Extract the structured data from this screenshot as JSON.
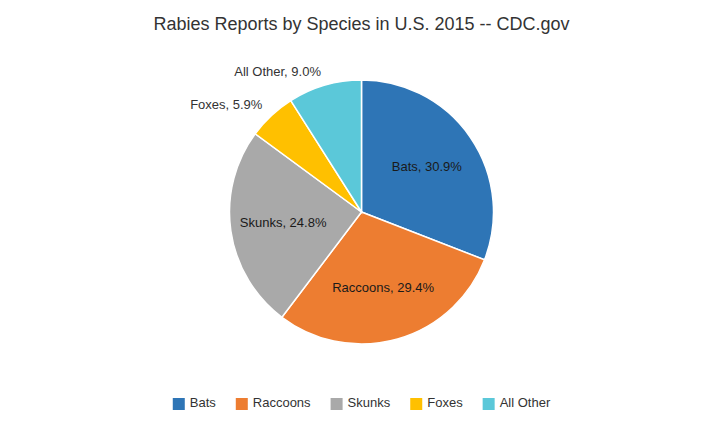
{
  "chart_data": {
    "type": "pie",
    "title": "Rabies Reports by Species in U.S. 2015 -- CDC.gov",
    "categories": [
      "Bats",
      "Raccoons",
      "Skunks",
      "Foxes",
      "All Other"
    ],
    "values": [
      30.9,
      29.4,
      24.8,
      5.9,
      9.0
    ],
    "value_labels": [
      "Bats, 30.9%",
      "Raccoons, 29.4%",
      "Skunks, 24.8%",
      "Foxes, 5.9%",
      "All Other, 9.0%"
    ],
    "colors": [
      "#2E75B6",
      "#ED7D31",
      "#A9A9A9",
      "#FFC000",
      "#5BC8D9"
    ],
    "data_labels": true,
    "legend": "bottom"
  }
}
